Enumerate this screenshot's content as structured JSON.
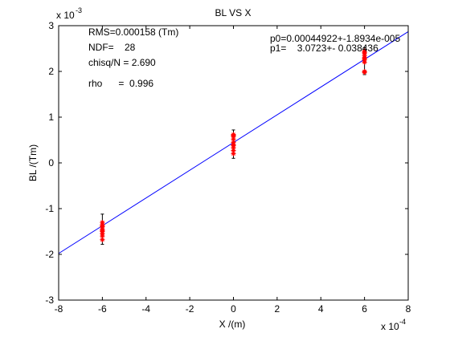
{
  "chart_data": {
    "type": "scatter",
    "title": "BL VS X",
    "xlabel": "X /(m)",
    "ylabel": "BL /(Tm)",
    "x_exponent": "x 10",
    "x_exponent_power": "-4",
    "y_exponent": "x 10",
    "y_exponent_power": "-3",
    "xlim": [
      -8,
      8
    ],
    "ylim": [
      -3,
      3
    ],
    "x_ticks": [
      "-8",
      "-6",
      "-4",
      "-2",
      "0",
      "2",
      "4",
      "6",
      "8"
    ],
    "y_ticks": [
      "-3",
      "-2",
      "-1",
      "0",
      "1",
      "2",
      "3"
    ],
    "grid": false,
    "stats_lines": [
      "RMS=0.000158 (Tm)",
      "NDF=    28",
      "chisq/N = 2.690",
      "rho      =  0.996"
    ],
    "fit_text_lines": [
      "p0=0.00044922+-1.8934e-005",
      "p1=    3.0723+- 0.038436"
    ],
    "fit_line": {
      "x": [
        -8,
        8
      ],
      "y": [
        -1.98,
        2.87
      ]
    },
    "series": [
      {
        "points": [
          {
            "x": -6,
            "y": -1.3
          },
          {
            "x": -6,
            "y": -1.35
          },
          {
            "x": -6,
            "y": -1.4
          },
          {
            "x": -6,
            "y": -1.45
          },
          {
            "x": -6,
            "y": -1.5
          },
          {
            "x": -6,
            "y": -1.55
          },
          {
            "x": -6,
            "y": -1.6
          },
          {
            "x": -6,
            "y": -1.68
          },
          {
            "x": -6,
            "y": -1.38
          },
          {
            "x": -6,
            "y": -1.48
          },
          {
            "x": 0,
            "y": 0.62
          },
          {
            "x": 0,
            "y": 0.58
          },
          {
            "x": 0,
            "y": 0.52
          },
          {
            "x": 0,
            "y": 0.45
          },
          {
            "x": 0,
            "y": 0.4
          },
          {
            "x": 0,
            "y": 0.33
          },
          {
            "x": 0,
            "y": 0.27
          },
          {
            "x": 0,
            "y": 0.2
          },
          {
            "x": 0,
            "y": 0.6
          },
          {
            "x": 0,
            "y": 0.38
          },
          {
            "x": 6,
            "y": 2.45
          },
          {
            "x": 6,
            "y": 2.4
          },
          {
            "x": 6,
            "y": 2.35
          },
          {
            "x": 6,
            "y": 2.3
          },
          {
            "x": 6,
            "y": 2.25
          },
          {
            "x": 6,
            "y": 2.2
          },
          {
            "x": 6,
            "y": 2.0
          },
          {
            "x": 6,
            "y": 1.98
          },
          {
            "x": 6,
            "y": 2.42
          },
          {
            "x": 6,
            "y": 2.28
          }
        ],
        "errors": [
          {
            "x": -6,
            "lo": -1.78,
            "hi": -1.12
          },
          {
            "x": 0,
            "lo": 0.1,
            "hi": 0.72
          },
          {
            "x": 6,
            "lo": 1.93,
            "hi": 2.52
          }
        ]
      }
    ]
  },
  "colors": {
    "fit_line": "#0000ff",
    "points": "#ff0000",
    "error_bars": "#000000",
    "axes": "#000000",
    "background": "#ffffff"
  }
}
